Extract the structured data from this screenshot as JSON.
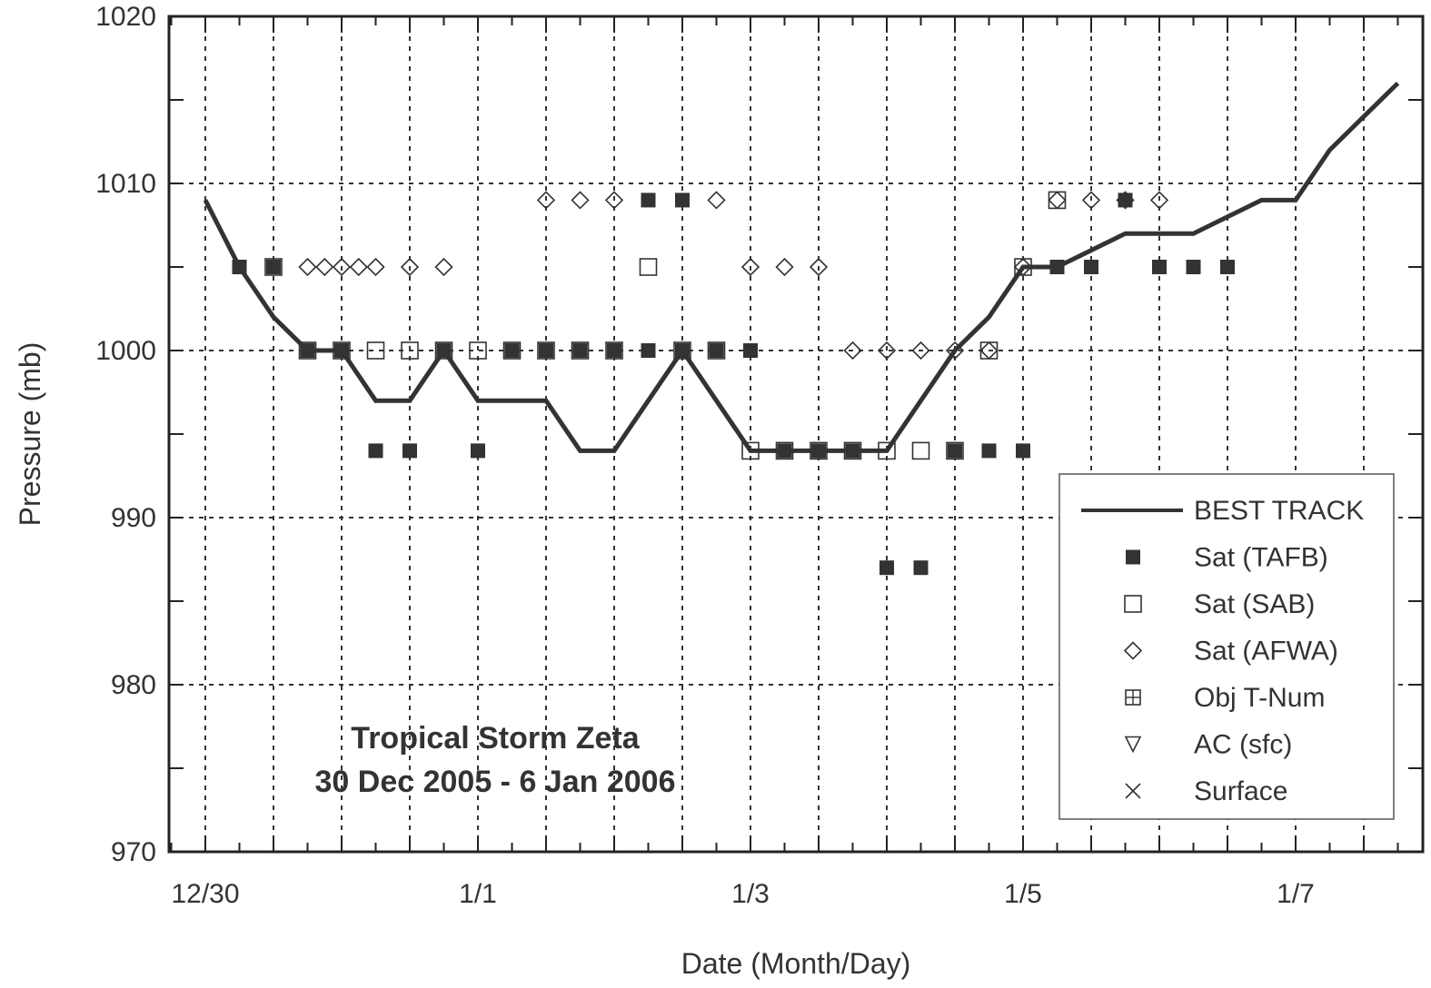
{
  "chart_data": {
    "type": "line",
    "title": "",
    "annotation": [
      "Tropical Storm Zeta",
      "30 Dec 2005 - 6 Jan 2006"
    ],
    "xlabel": "Date (Month/Day)",
    "ylabel": "Pressure (mb)",
    "xlim": [
      "2005-12-30 00:00",
      "2006-01-08 06:00"
    ],
    "ylim": [
      970,
      1020
    ],
    "x_ticks": [
      "12/30",
      "1/1",
      "1/3",
      "1/5",
      "1/7"
    ],
    "y_ticks": [
      "970",
      "980",
      "990",
      "1000",
      "1010",
      "1020"
    ],
    "grid": true,
    "legend_position": "bottom-right",
    "colors": {
      "ink": "#333333",
      "axis": "#222222"
    },
    "series": [
      {
        "name": "BEST TRACK",
        "style": "line",
        "points": [
          [
            "2005-12-30 00:00",
            1009
          ],
          [
            "2005-12-30 06:00",
            1005
          ],
          [
            "2005-12-30 12:00",
            1002
          ],
          [
            "2005-12-30 18:00",
            1000
          ],
          [
            "2005-12-31 00:00",
            1000
          ],
          [
            "2005-12-31 06:00",
            997
          ],
          [
            "2005-12-31 12:00",
            997
          ],
          [
            "2005-12-31 18:00",
            1000
          ],
          [
            "2006-01-01 00:00",
            997
          ],
          [
            "2006-01-01 06:00",
            997
          ],
          [
            "2006-01-01 12:00",
            997
          ],
          [
            "2006-01-01 18:00",
            994
          ],
          [
            "2006-01-02 00:00",
            994
          ],
          [
            "2006-01-02 06:00",
            997
          ],
          [
            "2006-01-02 12:00",
            1000
          ],
          [
            "2006-01-02 18:00",
            997
          ],
          [
            "2006-01-03 00:00",
            994
          ],
          [
            "2006-01-03 06:00",
            994
          ],
          [
            "2006-01-03 12:00",
            994
          ],
          [
            "2006-01-03 18:00",
            994
          ],
          [
            "2006-01-04 00:00",
            994
          ],
          [
            "2006-01-04 06:00",
            997
          ],
          [
            "2006-01-04 12:00",
            1000
          ],
          [
            "2006-01-04 18:00",
            1002
          ],
          [
            "2006-01-05 00:00",
            1005
          ],
          [
            "2006-01-05 06:00",
            1005
          ],
          [
            "2006-01-05 12:00",
            1006
          ],
          [
            "2006-01-05 18:00",
            1007
          ],
          [
            "2006-01-06 00:00",
            1007
          ],
          [
            "2006-01-06 06:00",
            1007
          ],
          [
            "2006-01-06 12:00",
            1008
          ],
          [
            "2006-01-06 18:00",
            1009
          ],
          [
            "2006-01-07 00:00",
            1009
          ],
          [
            "2006-01-07 06:00",
            1012
          ],
          [
            "2006-01-07 12:00",
            1014
          ],
          [
            "2006-01-07 18:00",
            1016
          ]
        ]
      },
      {
        "name": "Sat (TAFB)",
        "style": "filled-square",
        "points": [
          [
            "2005-12-30 06:00",
            1005
          ],
          [
            "2005-12-30 12:00",
            1005
          ],
          [
            "2005-12-30 18:00",
            1000
          ],
          [
            "2005-12-31 00:00",
            1000
          ],
          [
            "2005-12-31 06:00",
            994
          ],
          [
            "2005-12-31 12:00",
            994
          ],
          [
            "2005-12-31 18:00",
            1000
          ],
          [
            "2006-01-01 00:00",
            994
          ],
          [
            "2006-01-01 06:00",
            1000
          ],
          [
            "2006-01-01 12:00",
            1000
          ],
          [
            "2006-01-01 18:00",
            1000
          ],
          [
            "2006-01-02 00:00",
            1000
          ],
          [
            "2006-01-02 06:00",
            1009
          ],
          [
            "2006-01-02 06:00",
            1000
          ],
          [
            "2006-01-02 12:00",
            1009
          ],
          [
            "2006-01-02 12:00",
            1000
          ],
          [
            "2006-01-02 18:00",
            1000
          ],
          [
            "2006-01-03 00:00",
            1000
          ],
          [
            "2006-01-03 06:00",
            994
          ],
          [
            "2006-01-03 12:00",
            994
          ],
          [
            "2006-01-03 18:00",
            994
          ],
          [
            "2006-01-04 00:00",
            987
          ],
          [
            "2006-01-04 06:00",
            987
          ],
          [
            "2006-01-04 12:00",
            994
          ],
          [
            "2006-01-04 18:00",
            994
          ],
          [
            "2006-01-05 00:00",
            994
          ],
          [
            "2006-01-05 06:00",
            1005
          ],
          [
            "2006-01-05 12:00",
            1005
          ],
          [
            "2006-01-05 18:00",
            1009
          ],
          [
            "2006-01-06 00:00",
            1005
          ],
          [
            "2006-01-06 06:00",
            1005
          ],
          [
            "2006-01-06 12:00",
            1005
          ]
        ]
      },
      {
        "name": "Sat (SAB)",
        "style": "open-square",
        "points": [
          [
            "2005-12-30 12:00",
            1005
          ],
          [
            "2005-12-30 18:00",
            1000
          ],
          [
            "2005-12-31 00:00",
            1000
          ],
          [
            "2005-12-31 06:00",
            1000
          ],
          [
            "2005-12-31 12:00",
            1000
          ],
          [
            "2005-12-31 18:00",
            1000
          ],
          [
            "2006-01-01 00:00",
            1000
          ],
          [
            "2006-01-01 06:00",
            1000
          ],
          [
            "2006-01-01 12:00",
            1000
          ],
          [
            "2006-01-01 18:00",
            1000
          ],
          [
            "2006-01-02 00:00",
            1000
          ],
          [
            "2006-01-02 06:00",
            1005
          ],
          [
            "2006-01-02 12:00",
            1000
          ],
          [
            "2006-01-02 18:00",
            1000
          ],
          [
            "2006-01-03 00:00",
            994
          ],
          [
            "2006-01-03 06:00",
            994
          ],
          [
            "2006-01-03 12:00",
            994
          ],
          [
            "2006-01-03 18:00",
            994
          ],
          [
            "2006-01-04 00:00",
            994
          ],
          [
            "2006-01-04 06:00",
            994
          ],
          [
            "2006-01-04 12:00",
            994
          ],
          [
            "2006-01-04 18:00",
            1000
          ],
          [
            "2006-01-05 00:00",
            1005
          ],
          [
            "2006-01-05 06:00",
            1009
          ]
        ]
      },
      {
        "name": "Sat (AFWA)",
        "style": "open-diamond",
        "points": [
          [
            "2005-12-30 18:00",
            1005
          ],
          [
            "2005-12-30 21:00",
            1005
          ],
          [
            "2005-12-31 00:00",
            1005
          ],
          [
            "2005-12-31 03:00",
            1005
          ],
          [
            "2005-12-31 06:00",
            1005
          ],
          [
            "2005-12-31 12:00",
            1005
          ],
          [
            "2005-12-31 18:00",
            1005
          ],
          [
            "2006-01-01 12:00",
            1009
          ],
          [
            "2006-01-01 18:00",
            1009
          ],
          [
            "2006-01-02 00:00",
            1009
          ],
          [
            "2006-01-02 18:00",
            1009
          ],
          [
            "2006-01-03 00:00",
            1005
          ],
          [
            "2006-01-03 06:00",
            1005
          ],
          [
            "2006-01-03 12:00",
            1005
          ],
          [
            "2006-01-03 18:00",
            1000
          ],
          [
            "2006-01-04 00:00",
            1000
          ],
          [
            "2006-01-04 06:00",
            1000
          ],
          [
            "2006-01-04 12:00",
            1000
          ],
          [
            "2006-01-04 18:00",
            1000
          ],
          [
            "2006-01-05 00:00",
            1005
          ],
          [
            "2006-01-05 06:00",
            1009
          ],
          [
            "2006-01-05 12:00",
            1009
          ],
          [
            "2006-01-05 18:00",
            1009
          ],
          [
            "2006-01-06 00:00",
            1009
          ]
        ]
      },
      {
        "name": "Obj T-Num",
        "style": "boxed-plus",
        "points": []
      },
      {
        "name": "AC (sfc)",
        "style": "open-triangle-down",
        "points": []
      },
      {
        "name": "Surface",
        "style": "x-mark",
        "points": []
      }
    ]
  }
}
